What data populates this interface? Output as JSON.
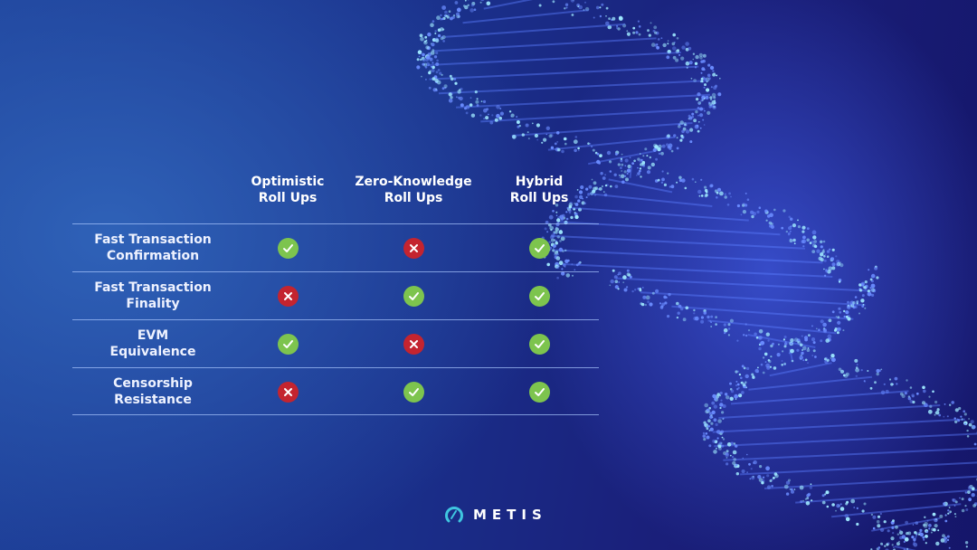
{
  "columns": [
    "Optimistic\nRoll Ups",
    "Zero-Knowledge\nRoll Ups",
    "Hybrid\nRoll Ups"
  ],
  "column_lines": [
    [
      "Optimistic",
      "Roll Ups"
    ],
    [
      "Zero-Knowledge",
      "Roll Ups"
    ],
    [
      "Hybrid",
      "Roll Ups"
    ]
  ],
  "rows": [
    {
      "label": [
        "Fast Transaction",
        "Confirmation"
      ],
      "values": [
        true,
        false,
        true
      ]
    },
    {
      "label": [
        "Fast Transaction",
        "Finality"
      ],
      "values": [
        false,
        true,
        true
      ]
    },
    {
      "label": [
        "EVM",
        "Equivalence"
      ],
      "values": [
        true,
        false,
        true
      ]
    },
    {
      "label": [
        "Censorship",
        "Resistance"
      ],
      "values": [
        false,
        true,
        true
      ]
    }
  ],
  "icons": {
    "yes": "check-circle-icon",
    "no": "x-circle-icon"
  },
  "colors": {
    "yes": "#7dc44e",
    "no": "#c4242f",
    "logo": "#3fc6e0"
  },
  "logo": {
    "text": "METIS"
  }
}
